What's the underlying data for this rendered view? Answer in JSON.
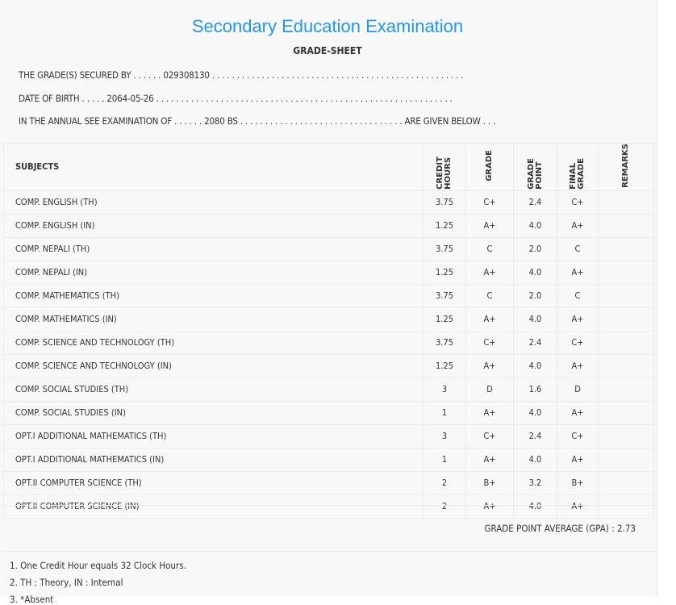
{
  "title": "Secondary Education Examination",
  "subtitle": "GRADE-SHEET",
  "info": {
    "secured_by": "THE GRADE(S) SECURED BY . . . . . . 029308130 . . . . . . . . . . . . . . . . . . . . . . . . . . . . . . . . . . . . . . . . . . . . . . . . . . .",
    "dob": "DATE OF BIRTH . . . . . 2064-05-26 . . . . . . . . . . . . . . . . . . . . . . . . . . . . . . . . . . . . . . . . . . . . . . . . . . . . . . . . . . . .",
    "exam": "IN THE ANNUAL SEE EXAMINATION OF . . . . . . 2080 BS . . . . . . . . . . . . . . . . . . . . . . . . . . . . . . . . . ARE GIVEN BELOW . . ."
  },
  "headers": {
    "subjects": "SUBJECTS",
    "credit_hours": "CREDIT HOURS",
    "grade": "GRADE",
    "grade_point": "GRADE POINT",
    "final_grade": "FINAL GRADE",
    "remarks": "REMARKS"
  },
  "rows": [
    {
      "subject": "COMP. ENGLISH (TH)",
      "ch": "3.75",
      "grade": "C+",
      "gp": "2.4",
      "final": "C+"
    },
    {
      "subject": "COMP. ENGLISH (IN)",
      "ch": "1.25",
      "grade": "A+",
      "gp": "4.0",
      "final": "A+"
    },
    {
      "subject": "COMP. NEPALI (TH)",
      "ch": "3.75",
      "grade": "C",
      "gp": "2.0",
      "final": "C"
    },
    {
      "subject": "COMP. NEPALI (IN)",
      "ch": "1.25",
      "grade": "A+",
      "gp": "4.0",
      "final": "A+"
    },
    {
      "subject": "COMP. MATHEMATICS (TH)",
      "ch": "3.75",
      "grade": "C",
      "gp": "2.0",
      "final": "C"
    },
    {
      "subject": "COMP. MATHEMATICS (IN)",
      "ch": "1.25",
      "grade": "A+",
      "gp": "4.0",
      "final": "A+"
    },
    {
      "subject": "COMP. SCIENCE AND TECHNOLOGY (TH)",
      "ch": "3.75",
      "grade": "C+",
      "gp": "2.4",
      "final": "C+"
    },
    {
      "subject": "COMP. SCIENCE AND TECHNOLOGY (IN)",
      "ch": "1.25",
      "grade": "A+",
      "gp": "4.0",
      "final": "A+"
    },
    {
      "subject": "COMP. SOCIAL STUDIES (TH)",
      "ch": "3",
      "grade": "D",
      "gp": "1.6",
      "final": "D"
    },
    {
      "subject": "COMP. SOCIAL STUDIES (IN)",
      "ch": "1",
      "grade": "A+",
      "gp": "4.0",
      "final": "A+"
    },
    {
      "subject": "OPT.I ADDITIONAL MATHEMATICS (TH)",
      "ch": "3",
      "grade": "C+",
      "gp": "2.4",
      "final": "C+"
    },
    {
      "subject": "OPT.I ADDITIONAL MATHEMATICS (IN)",
      "ch": "1",
      "grade": "A+",
      "gp": "4.0",
      "final": "A+"
    },
    {
      "subject": "OPT.II COMPUTER SCIENCE (TH)",
      "ch": "2",
      "grade": "B+",
      "gp": "3.2",
      "final": "B+"
    },
    {
      "subject": "OPT.II COMPUTER SCIENCE (IN)",
      "ch": "2",
      "grade": "A+",
      "gp": "4.0",
      "final": "A+"
    }
  ],
  "gpa": "GRADE POINT AVERAGE (GPA) : 2.73",
  "notes": [
    "1. One Credit Hour equals 32 Clock Hours.",
    "2. TH : Theory, IN : Internal",
    "3. *Absent"
  ]
}
